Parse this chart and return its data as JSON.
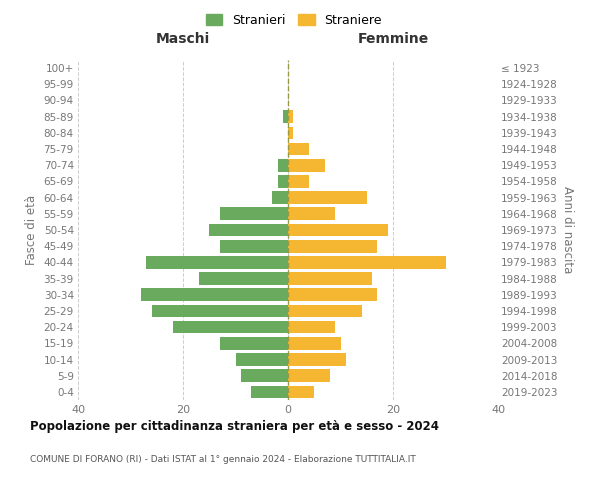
{
  "age_groups": [
    "0-4",
    "5-9",
    "10-14",
    "15-19",
    "20-24",
    "25-29",
    "30-34",
    "35-39",
    "40-44",
    "45-49",
    "50-54",
    "55-59",
    "60-64",
    "65-69",
    "70-74",
    "75-79",
    "80-84",
    "85-89",
    "90-94",
    "95-99",
    "100+"
  ],
  "birth_years": [
    "2019-2023",
    "2014-2018",
    "2009-2013",
    "2004-2008",
    "1999-2003",
    "1994-1998",
    "1989-1993",
    "1984-1988",
    "1979-1983",
    "1974-1978",
    "1969-1973",
    "1964-1968",
    "1959-1963",
    "1954-1958",
    "1949-1953",
    "1944-1948",
    "1939-1943",
    "1934-1938",
    "1929-1933",
    "1924-1928",
    "≤ 1923"
  ],
  "maschi": [
    7,
    9,
    10,
    13,
    22,
    26,
    28,
    17,
    27,
    13,
    15,
    13,
    3,
    2,
    2,
    0,
    0,
    1,
    0,
    0,
    0
  ],
  "femmine": [
    5,
    8,
    11,
    10,
    9,
    14,
    17,
    16,
    30,
    17,
    19,
    9,
    15,
    4,
    7,
    4,
    1,
    1,
    0,
    0,
    0
  ],
  "maschi_color": "#6aaa5e",
  "femmine_color": "#f5b731",
  "title": "Popolazione per cittadinanza straniera per età e sesso - 2024",
  "subtitle": "COMUNE DI FORANO (RI) - Dati ISTAT al 1° gennaio 2024 - Elaborazione TUTTITALIA.IT",
  "label_maschi": "Maschi",
  "label_femmine": "Femmine",
  "ylabel_left": "Fasce di età",
  "ylabel_right": "Anni di nascita",
  "legend_male": "Stranieri",
  "legend_female": "Straniere",
  "xlim": 40,
  "bg_color": "#ffffff",
  "grid_color": "#cccccc",
  "tick_color": "#777777",
  "label_color": "#333333",
  "title_color": "#111111",
  "subtitle_color": "#555555",
  "center_line_color": "#999944"
}
